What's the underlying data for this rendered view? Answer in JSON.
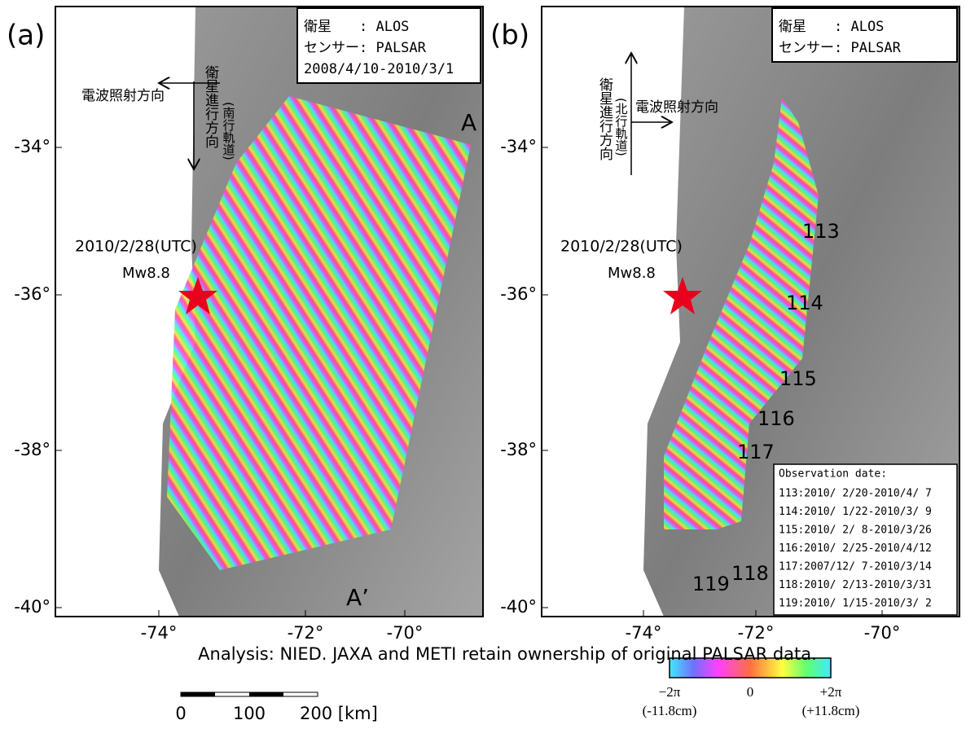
{
  "panels": [
    {
      "label": "(a)",
      "legend": [
        "衛星　　: ALOS",
        "センサー: PALSAR",
        "2008/4/10-2010/3/1"
      ],
      "flight_direction": "衛星進行方向",
      "orbit": "(南行軌道)",
      "look_direction": "電波照射方向",
      "event_date": "2010/2/28(UTC)",
      "magnitude": "Mw8.8",
      "profile": [
        "A",
        "A’"
      ]
    },
    {
      "label": "(b)",
      "legend": [
        "衛星　　: ALOS",
        "センサー: PALSAR"
      ],
      "flight_direction": "衛星進行方向",
      "orbit": "(北行軌道)",
      "look_direction": "電波照射方向",
      "event_date": "2010/2/28(UTC)",
      "magnitude": "Mw8.8",
      "tracks": [
        "113",
        "114",
        "115",
        "116",
        "117",
        "118",
        "119"
      ],
      "observation_title": "Observation date:",
      "observation_dates": [
        "113:2010/ 2/20-2010/4/ 7",
        "114:2010/ 1/22-2010/3/ 9",
        "115:2010/ 2/ 8-2010/3/26",
        "116:2010/ 2/25-2010/4/12",
        "117:2007/12/ 7-2010/3/14",
        "118:2010/ 2/13-2010/3/31",
        "119:2010/ 1/15-2010/3/ 2"
      ]
    }
  ],
  "yticks": [
    "-34°",
    "-36°",
    "-38°",
    "-40°"
  ],
  "xticks": [
    "-74°",
    "-72°",
    "-70°"
  ],
  "credit": "Analysis: NIED. JAXA and METI retain ownership of original PALSAR data.",
  "scale_bar": [
    "0",
    "100",
    "200 [km]"
  ],
  "colorbar": {
    "min": "−2π",
    "mid": "0",
    "max": "+2π",
    "min_cm": "(-11.8cm)",
    "max_cm": "(+11.8cm)"
  }
}
